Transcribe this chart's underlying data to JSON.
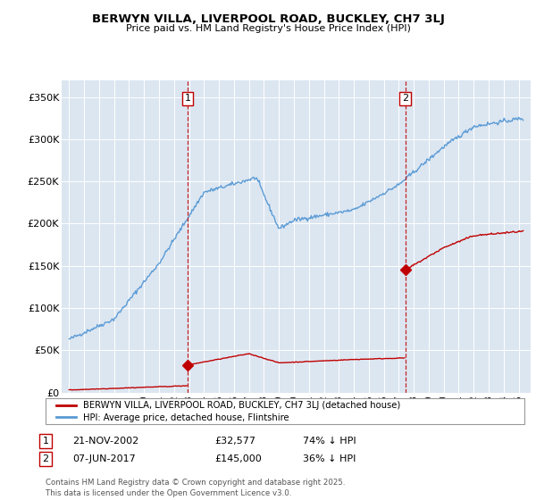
{
  "title": "BERWYN VILLA, LIVERPOOL ROAD, BUCKLEY, CH7 3LJ",
  "subtitle": "Price paid vs. HM Land Registry's House Price Index (HPI)",
  "ylabel_ticks": [
    "£0",
    "£50K",
    "£100K",
    "£150K",
    "£200K",
    "£250K",
    "£300K",
    "£350K"
  ],
  "ylim": [
    0,
    370000
  ],
  "xlim_start": 1994.5,
  "xlim_end": 2025.8,
  "hpi_color": "#5b9bd5",
  "price_color": "#c00000",
  "marker1_date": 2002.9,
  "marker1_price": 32577,
  "marker1_label": "1",
  "marker1_text": "21-NOV-2002",
  "marker1_price_text": "£32,577",
  "marker1_hpi_text": "74% ↓ HPI",
  "marker2_date": 2017.43,
  "marker2_price": 145000,
  "marker2_label": "2",
  "marker2_text": "07-JUN-2017",
  "marker2_price_text": "£145,000",
  "marker2_hpi_text": "36% ↓ HPI",
  "legend_label1": "BERWYN VILLA, LIVERPOOL ROAD, BUCKLEY, CH7 3LJ (detached house)",
  "legend_label2": "HPI: Average price, detached house, Flintshire",
  "footer": "Contains HM Land Registry data © Crown copyright and database right 2025.\nThis data is licensed under the Open Government Licence v3.0.",
  "plot_bg_color": "#dce6f1"
}
